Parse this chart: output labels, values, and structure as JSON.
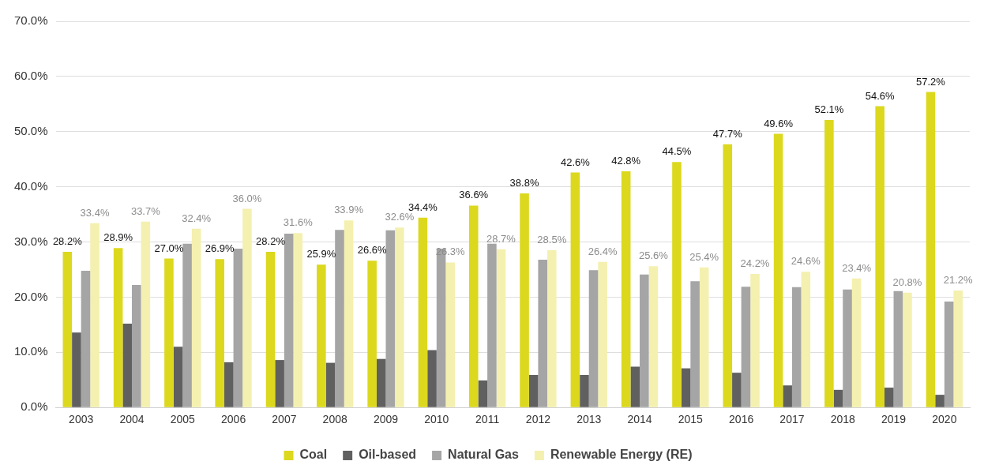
{
  "chart_data": {
    "type": "bar",
    "categories": [
      "2003",
      "2004",
      "2005",
      "2006",
      "2007",
      "2008",
      "2009",
      "2010",
      "2011",
      "2012",
      "2013",
      "2014",
      "2015",
      "2016",
      "2017",
      "2018",
      "2019",
      "2020"
    ],
    "series": [
      {
        "name": "Coal",
        "color": "#dcd81e",
        "values": [
          28.2,
          28.9,
          27.0,
          26.9,
          28.2,
          25.9,
          26.6,
          34.4,
          36.6,
          38.8,
          42.6,
          42.8,
          44.5,
          47.7,
          49.6,
          52.1,
          54.6,
          57.2
        ],
        "value_labels": [
          "28.2%",
          "28.9%",
          "27.0%",
          "26.9%",
          "28.2%",
          "25.9%",
          "26.6%",
          "34.4%",
          "36.6%",
          "38.8%",
          "42.6%",
          "42.8%",
          "44.5%",
          "47.7%",
          "49.6%",
          "52.1%",
          "54.6%",
          "57.2%"
        ]
      },
      {
        "name": "Oil-based",
        "color": "#606060",
        "values": [
          13.6,
          15.2,
          11.0,
          8.2,
          8.6,
          8.1,
          8.8,
          10.4,
          4.9,
          5.9,
          5.9,
          7.4,
          7.1,
          6.3,
          4.0,
          3.2,
          3.6,
          2.3
        ]
      },
      {
        "name": "Natural Gas",
        "color": "#a5a5a5",
        "values": [
          24.8,
          22.2,
          29.7,
          28.8,
          31.5,
          32.2,
          32.1,
          28.8,
          29.7,
          26.8,
          24.9,
          24.1,
          22.9,
          21.9,
          21.8,
          21.4,
          21.1,
          19.2
        ]
      },
      {
        "name": "Renewable Energy (RE)",
        "color": "#f4f0b0",
        "values": [
          33.4,
          33.7,
          32.4,
          36.0,
          31.6,
          33.9,
          32.6,
          26.3,
          28.7,
          28.5,
          26.4,
          25.6,
          25.4,
          24.2,
          24.6,
          23.4,
          20.8,
          21.2
        ],
        "value_labels": [
          "33.4%",
          "33.7%",
          "32.4%",
          "36.0%",
          "31.6%",
          "33.9%",
          "32.6%",
          "26.3%",
          "28.7%",
          "28.5%",
          "26.4%",
          "25.6%",
          "25.4%",
          "24.2%",
          "24.6%",
          "23.4%",
          "20.8%",
          "21.2%"
        ]
      }
    ],
    "ylim": [
      0,
      70
    ],
    "yticks": [
      {
        "value": 0,
        "label": "0.0%"
      },
      {
        "value": 10,
        "label": "10.0%"
      },
      {
        "value": 20,
        "label": "20.0%"
      },
      {
        "value": 30,
        "label": "30.0%"
      },
      {
        "value": 40,
        "label": "40.0%"
      },
      {
        "value": 50,
        "label": "50.0%"
      },
      {
        "value": 60,
        "label": "60.0%"
      },
      {
        "value": 70,
        "label": "70.0%"
      }
    ],
    "grid": "y",
    "legend": "bottom"
  }
}
